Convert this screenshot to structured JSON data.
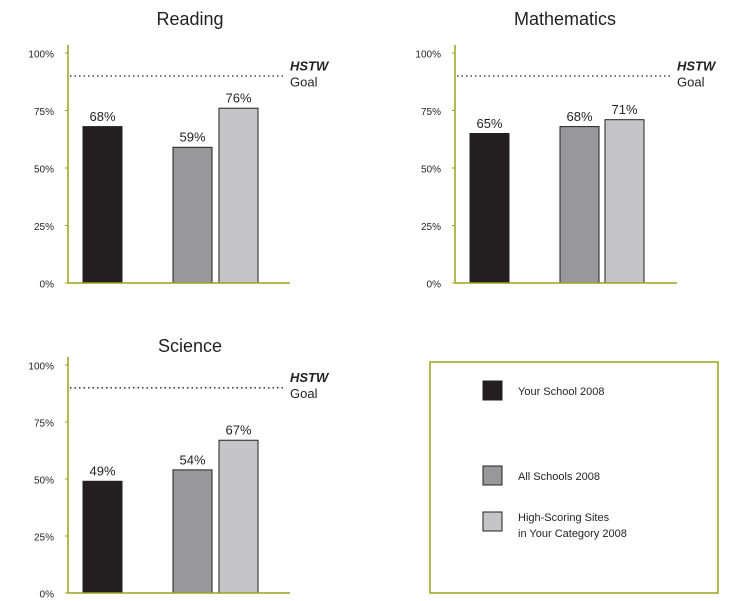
{
  "chart_data": [
    {
      "type": "bar",
      "title": "Reading",
      "values": [
        68,
        59,
        76
      ],
      "value_labels": [
        "68%",
        "59%",
        "76%"
      ],
      "ylim": [
        0,
        100
      ],
      "yticks": [
        {
          "value": 0,
          "label": "0%"
        },
        {
          "value": 25,
          "label": "25%"
        },
        {
          "value": 50,
          "label": "50%"
        },
        {
          "value": 75,
          "label": "75%"
        },
        {
          "value": 100,
          "label": "100%"
        }
      ],
      "goal_value": 90,
      "goal_label": "HSTW",
      "goal_sublabel": "Goal"
    },
    {
      "type": "bar",
      "title": "Mathematics",
      "values": [
        65,
        68,
        71
      ],
      "value_labels": [
        "65%",
        "68%",
        "71%"
      ],
      "ylim": [
        0,
        100
      ],
      "yticks": [
        {
          "value": 0,
          "label": "0%"
        },
        {
          "value": 25,
          "label": "25%"
        },
        {
          "value": 50,
          "label": "50%"
        },
        {
          "value": 75,
          "label": "75%"
        },
        {
          "value": 100,
          "label": "100%"
        }
      ],
      "goal_value": 90,
      "goal_label": "HSTW",
      "goal_sublabel": "Goal"
    },
    {
      "type": "bar",
      "title": "Science",
      "values": [
        49,
        54,
        67
      ],
      "value_labels": [
        "49%",
        "54%",
        "67%"
      ],
      "ylim": [
        0,
        100
      ],
      "yticks": [
        {
          "value": 0,
          "label": "0%"
        },
        {
          "value": 25,
          "label": "25%"
        },
        {
          "value": 50,
          "label": "50%"
        },
        {
          "value": 75,
          "label": "75%"
        },
        {
          "value": 100,
          "label": "100%"
        }
      ],
      "goal_value": 90,
      "goal_label": "HSTW",
      "goal_sublabel": "Goal"
    }
  ],
  "legend": [
    {
      "name": [
        "Your School 2008"
      ],
      "color": "#231f20"
    },
    {
      "name": [
        "All Schools 2008"
      ],
      "color": "#98989a"
    },
    {
      "name": [
        "High-Scoring Sites",
        "in Your Category 2008"
      ],
      "color": "#c5c5c7"
    }
  ]
}
